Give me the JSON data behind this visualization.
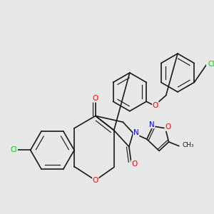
{
  "bg_color": "#e8e8e8",
  "bond_color": "#1a1a1a",
  "atom_colors": {
    "O": "#ff0000",
    "N": "#0000ff",
    "Cl": "#00cc00",
    "C": "#1a1a1a"
  },
  "figsize": [
    3.0,
    3.0
  ],
  "dpi": 100
}
